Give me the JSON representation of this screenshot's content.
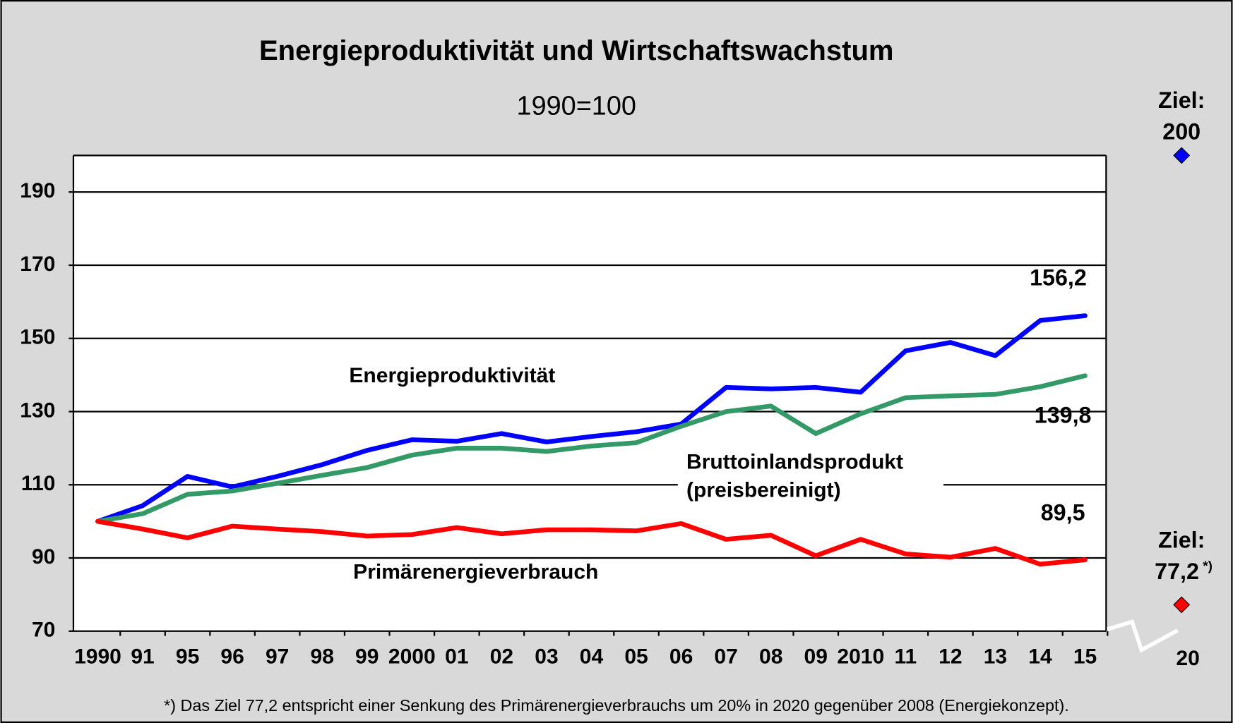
{
  "chart_data": {
    "type": "line",
    "title": "Energieproduktivität und Wirtschaftswachstum",
    "subtitle": "1990=100",
    "categories": [
      "1990",
      "91",
      "95",
      "96",
      "97",
      "98",
      "99",
      "2000",
      "01",
      "02",
      "03",
      "04",
      "05",
      "06",
      "07",
      "08",
      "09",
      "2010",
      "11",
      "12",
      "13",
      "14",
      "15"
    ],
    "series": [
      {
        "name": "Energieproduktivität",
        "color": "#0000ff",
        "values": [
          100,
          104.3,
          112.3,
          109.4,
          112.3,
          115.5,
          119.4,
          122.3,
          121.9,
          124.0,
          121.7,
          123.2,
          124.5,
          126.6,
          136.6,
          136.2,
          136.6,
          135.3,
          146.6,
          148.9,
          145.3,
          154.9,
          156.2
        ],
        "value_labels": [
          null,
          null,
          null,
          null,
          null,
          null,
          null,
          null,
          null,
          null,
          null,
          null,
          null,
          null,
          null,
          null,
          null,
          null,
          null,
          null,
          null,
          null,
          "156,2"
        ]
      },
      {
        "name": "Bruttoinlandsprodukt (preisbereinigt)",
        "color": "#339966",
        "values": [
          100,
          102.1,
          107.4,
          108.3,
          110.4,
          112.6,
          114.7,
          118.1,
          120.0,
          120.0,
          119.1,
          120.6,
          121.5,
          126.0,
          130.0,
          131.5,
          124.0,
          129.4,
          133.8,
          134.3,
          134.7,
          136.8,
          139.8
        ],
        "value_labels": [
          null,
          null,
          null,
          null,
          null,
          null,
          null,
          null,
          null,
          null,
          null,
          null,
          null,
          null,
          null,
          null,
          null,
          null,
          null,
          null,
          null,
          null,
          "139,8"
        ]
      },
      {
        "name": "Primärenergieverbrauch",
        "color": "#ff0000",
        "values": [
          100,
          97.9,
          95.5,
          98.7,
          97.9,
          97.2,
          96.0,
          96.4,
          98.3,
          96.6,
          97.7,
          97.7,
          97.4,
          99.4,
          95.1,
          96.2,
          90.6,
          95.1,
          91.1,
          90.2,
          92.6,
          88.3,
          89.5
        ],
        "value_labels": [
          null,
          null,
          null,
          null,
          null,
          null,
          null,
          null,
          null,
          null,
          null,
          null,
          null,
          null,
          null,
          null,
          null,
          null,
          null,
          null,
          null,
          null,
          "89,5"
        ]
      }
    ],
    "target_category": "20",
    "targets": [
      {
        "name": "Ziel:",
        "value": 200,
        "value_label": "200",
        "color": "#0000ff"
      },
      {
        "name": "Ziel:",
        "value": 77.2,
        "value_label": "77,2",
        "note": "*)",
        "color": "#ff0000"
      }
    ],
    "ylim": [
      70,
      200
    ],
    "yticks": [
      70,
      90,
      110,
      130,
      150,
      170,
      190
    ],
    "grid": true,
    "footnote": "*) Das Ziel 77,2 entspricht einer Senkung des Primärenergieverbrauchs um 20% in 2020 gegenüber 2008 (Energiekonzept)."
  }
}
